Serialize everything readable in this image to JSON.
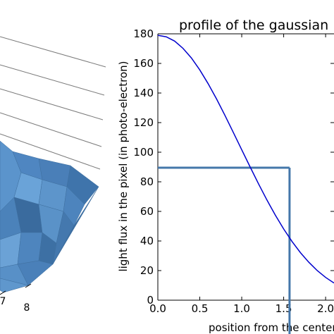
{
  "chart_data": [
    {
      "type": "surface3d",
      "partial": true,
      "visible_tick_labels": [
        "7",
        "8"
      ],
      "surface_color": "#4f86c1",
      "grid": true
    },
    {
      "type": "line",
      "title": "profile of the gaussian",
      "xlabel": "position from the center",
      "ylabel": "light flux in the pixel (in photo-electron)",
      "xlim": [
        0,
        2.1
      ],
      "ylim": [
        0,
        180
      ],
      "xticks": [
        "0.0",
        "0.5",
        "1.0",
        "1.5",
        "2.0"
      ],
      "yticks": [
        "0",
        "20",
        "40",
        "60",
        "80",
        "100",
        "120",
        "140",
        "160",
        "180"
      ],
      "series": [
        {
          "color": "#0000cc",
          "x": [
            0.0,
            0.1,
            0.2,
            0.3,
            0.4,
            0.5,
            0.6,
            0.7,
            0.8,
            0.9,
            1.0,
            1.1,
            1.2,
            1.3,
            1.4,
            1.5,
            1.6,
            1.7,
            1.8,
            1.9,
            2.0,
            2.1
          ],
          "y": [
            179.0,
            178.0,
            175.1,
            170.2,
            163.7,
            155.6,
            146.3,
            136.0,
            124.9,
            113.4,
            101.7,
            90.0,
            78.6,
            67.7,
            57.5,
            48.1,
            39.6,
            32.1,
            25.6,
            20.0,
            15.4,
            11.6
          ]
        }
      ],
      "annotation": {
        "color": "#4477aa",
        "x": 1.57,
        "y": 89.5
      }
    }
  ]
}
